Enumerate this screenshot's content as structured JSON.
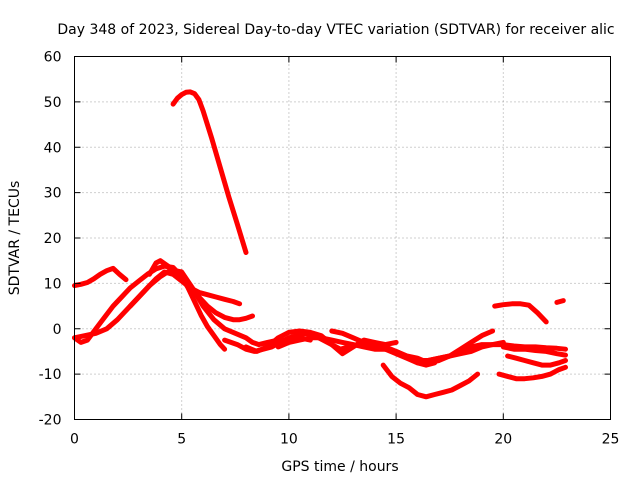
{
  "chart_data": {
    "type": "line",
    "title": "Day 348 of 2023, Sidereal Day-to-day VTEC variation (SDTVAR) for receiver alic",
    "xlabel": "GPS time / hours",
    "ylabel": "SDTVAR / TECUs",
    "xlim": [
      0,
      25
    ],
    "ylim": [
      -20,
      60
    ],
    "xticks": [
      0,
      5,
      10,
      15,
      20,
      25
    ],
    "yticks": [
      -20,
      -10,
      0,
      10,
      20,
      30,
      40,
      50,
      60
    ],
    "grid": true,
    "color": "#ff0000",
    "series": [
      {
        "name": "s1",
        "x": [
          0.0,
          0.3,
          0.6,
          0.9,
          1.2,
          1.5,
          1.8,
          2.1,
          2.4
        ],
        "y": [
          9.5,
          9.8,
          10.2,
          11.0,
          12.0,
          12.8,
          13.3,
          12.0,
          10.8
        ]
      },
      {
        "name": "s2",
        "x": [
          4.6,
          4.8,
          5.0,
          5.2,
          5.4,
          5.6,
          5.8,
          6.0,
          6.4,
          6.8,
          7.2,
          7.6,
          8.0
        ],
        "y": [
          49.5,
          50.8,
          51.6,
          52.1,
          52.2,
          51.8,
          50.5,
          48.0,
          42.0,
          35.5,
          29.0,
          23.0,
          16.8
        ]
      },
      {
        "name": "s3",
        "x": [
          0.0,
          0.3,
          0.6,
          1.0,
          1.4,
          1.8,
          2.2,
          2.6,
          3.0,
          3.4,
          3.8,
          4.2,
          4.6,
          5.0,
          5.3,
          5.6,
          5.9,
          6.2,
          6.5,
          6.8,
          7.0
        ],
        "y": [
          -2.0,
          -3.0,
          -2.5,
          0.0,
          2.5,
          5.0,
          7.0,
          9.0,
          10.5,
          12.0,
          13.2,
          13.8,
          13.5,
          11.5,
          9.0,
          6.0,
          3.0,
          0.5,
          -1.5,
          -3.5,
          -4.5
        ]
      },
      {
        "name": "s4",
        "x": [
          2.6,
          3.0,
          3.4,
          3.8,
          4.2,
          4.6,
          5.0,
          5.4,
          5.8,
          6.2,
          6.6,
          7.0,
          7.4,
          7.7
        ],
        "y": [
          5.0,
          7.0,
          9.0,
          11.0,
          12.5,
          12.0,
          10.5,
          9.0,
          8.0,
          7.5,
          7.0,
          6.5,
          6.0,
          5.5
        ]
      },
      {
        "name": "s5",
        "x": [
          3.5,
          3.8,
          4.0,
          4.3,
          4.6,
          5.0,
          5.4,
          5.8,
          6.2,
          6.6,
          7.0,
          7.4,
          7.7,
          8.0,
          8.3
        ],
        "y": [
          12.0,
          14.5,
          15.0,
          14.0,
          13.0,
          11.5,
          9.0,
          7.0,
          5.0,
          3.5,
          2.5,
          2.0,
          2.0,
          2.3,
          2.8
        ]
      },
      {
        "name": "s6",
        "x": [
          0.0,
          0.5,
          1.0,
          1.5,
          2.0,
          2.5,
          3.0,
          3.5,
          4.0,
          4.5,
          5.0,
          5.5,
          6.0,
          6.5,
          7.0,
          7.5,
          8.0,
          8.3,
          8.6,
          9.0,
          9.5,
          10.0,
          10.5,
          11.0
        ],
        "y": [
          -2.0,
          -1.5,
          -1.0,
          0.0,
          2.0,
          4.5,
          7.0,
          9.5,
          11.5,
          13.0,
          12.5,
          9.0,
          5.0,
          2.0,
          0.0,
          -1.0,
          -2.0,
          -3.0,
          -3.5,
          -3.0,
          -2.5,
          -2.5,
          -2.0,
          -2.5
        ]
      },
      {
        "name": "s7",
        "x": [
          7.0,
          7.3,
          7.6,
          8.0,
          8.4,
          8.8,
          9.2,
          9.6,
          10.0,
          10.4,
          10.8,
          11.2,
          11.6,
          12.0,
          12.4,
          12.8,
          13.2,
          13.6,
          14.0,
          14.4,
          14.8,
          15.2,
          15.6,
          16.0,
          16.4,
          16.8
        ],
        "y": [
          -2.5,
          -3.0,
          -3.5,
          -4.5,
          -5.0,
          -4.5,
          -4.0,
          -3.0,
          -2.0,
          -1.5,
          -1.0,
          -1.5,
          -2.5,
          -3.5,
          -4.5,
          -4.0,
          -3.5,
          -3.5,
          -3.5,
          -4.0,
          -5.0,
          -5.5,
          -6.5,
          -7.5,
          -8.0,
          -7.5
        ]
      },
      {
        "name": "s8",
        "x": [
          8.0,
          8.5,
          9.0,
          9.5,
          10.0,
          10.5,
          11.0,
          11.5,
          12.0,
          12.5,
          13.0,
          13.5,
          14.0,
          14.5,
          15.0
        ],
        "y": [
          -4.0,
          -5.0,
          -4.0,
          -2.0,
          -0.8,
          -0.5,
          -0.8,
          -1.5,
          -3.5,
          -5.5,
          -4.0,
          -2.5,
          -3.0,
          -3.5,
          -3.0
        ]
      },
      {
        "name": "s9",
        "x": [
          9.5,
          10.0,
          10.5,
          11.0,
          11.5,
          12.0,
          12.5,
          13.0,
          13.5,
          14.0,
          14.5,
          15.0,
          15.5,
          16.0,
          16.5,
          17.0,
          17.5,
          18.0,
          18.5,
          19.0,
          19.5,
          20.0
        ],
        "y": [
          -4.0,
          -3.0,
          -2.5,
          -2.0,
          -2.0,
          -2.5,
          -3.0,
          -3.5,
          -4.0,
          -4.5,
          -4.5,
          -5.0,
          -6.0,
          -7.0,
          -7.0,
          -6.5,
          -6.0,
          -5.0,
          -4.0,
          -3.5,
          -3.5,
          -3.0
        ]
      },
      {
        "name": "s10",
        "x": [
          12.0,
          12.5,
          13.0,
          13.5,
          14.0,
          14.5,
          15.0,
          15.5,
          16.0,
          16.5,
          17.0,
          17.5,
          18.0,
          18.5,
          19.0,
          19.5,
          20.0,
          20.5,
          21.0,
          21.5,
          22.0,
          22.5,
          22.9
        ],
        "y": [
          -0.5,
          -1.0,
          -2.0,
          -3.0,
          -3.5,
          -4.5,
          -5.5,
          -6.5,
          -7.5,
          -7.0,
          -6.5,
          -6.0,
          -5.5,
          -5.0,
          -4.0,
          -3.5,
          -3.5,
          -3.8,
          -4.0,
          -4.0,
          -4.2,
          -4.3,
          -4.5
        ]
      },
      {
        "name": "s11",
        "x": [
          14.5,
          15.0,
          15.5,
          16.0,
          16.5,
          17.0,
          17.5,
          18.0,
          18.5,
          19.0,
          19.5
        ],
        "y": [
          -4.0,
          -5.0,
          -6.0,
          -6.5,
          -7.5,
          -7.0,
          -6.0,
          -4.5,
          -3.0,
          -1.5,
          -0.5
        ]
      },
      {
        "name": "s12",
        "x": [
          14.4,
          14.8,
          15.2,
          15.6,
          16.0,
          16.4,
          16.8,
          17.2,
          17.6,
          18.0,
          18.4,
          18.8
        ],
        "y": [
          -8.0,
          -10.5,
          -12.0,
          -13.0,
          -14.5,
          -15.0,
          -14.5,
          -14.0,
          -13.5,
          -12.5,
          -11.5,
          -10.0
        ]
      },
      {
        "name": "s13",
        "x": [
          19.6,
          20.0,
          20.4,
          20.8,
          21.2,
          21.6,
          22.0
        ],
        "y": [
          5.0,
          5.3,
          5.5,
          5.5,
          5.2,
          3.5,
          1.5
        ]
      },
      {
        "name": "s14",
        "x": [
          22.5,
          22.8
        ],
        "y": [
          5.8,
          6.2
        ]
      },
      {
        "name": "s15",
        "x": [
          19.8,
          20.2,
          20.6,
          21.0,
          21.4,
          21.8,
          22.2,
          22.6,
          22.9
        ],
        "y": [
          -10.0,
          -10.5,
          -11.0,
          -11.0,
          -10.8,
          -10.5,
          -10.0,
          -9.0,
          -8.5
        ]
      },
      {
        "name": "s16",
        "x": [
          20.2,
          20.6,
          21.0,
          21.4,
          21.8,
          22.2,
          22.6,
          22.9
        ],
        "y": [
          -6.0,
          -6.5,
          -7.0,
          -7.5,
          -8.0,
          -8.0,
          -7.5,
          -7.0
        ]
      },
      {
        "name": "s17",
        "x": [
          20.0,
          20.5,
          21.0,
          21.5,
          22.0,
          22.5,
          22.9
        ],
        "y": [
          -4.0,
          -4.5,
          -4.5,
          -4.8,
          -5.0,
          -5.5,
          -5.8
        ]
      }
    ]
  }
}
